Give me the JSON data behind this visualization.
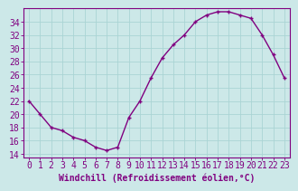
{
  "x": [
    0,
    1,
    2,
    3,
    4,
    5,
    6,
    7,
    8,
    9,
    10,
    11,
    12,
    13,
    14,
    15,
    16,
    17,
    18,
    19,
    20,
    21,
    22,
    23
  ],
  "y": [
    22,
    20,
    18,
    17.5,
    16.5,
    16,
    15,
    14.5,
    15,
    19.5,
    22,
    25.5,
    28.5,
    30.5,
    32,
    34,
    35,
    35.5,
    35.5,
    35,
    34.5,
    32,
    29,
    25.5
  ],
  "line_color": "#800080",
  "marker": "+",
  "bg_color": "#cce8e8",
  "grid_color": "#aad4d4",
  "xlabel": "Windchill (Refroidissement éolien,°C)",
  "ylabel": "",
  "ylim": [
    13.5,
    36
  ],
  "xlim": [
    -0.5,
    23.5
  ],
  "yticks": [
    14,
    16,
    18,
    20,
    22,
    24,
    26,
    28,
    30,
    32,
    34
  ],
  "xticks": [
    0,
    1,
    2,
    3,
    4,
    5,
    6,
    7,
    8,
    9,
    10,
    11,
    12,
    13,
    14,
    15,
    16,
    17,
    18,
    19,
    20,
    21,
    22,
    23
  ],
  "axis_color": "#800080",
  "font_size_xlabel": 7,
  "font_size_tick": 7,
  "line_width": 1.0,
  "marker_size": 3.5,
  "marker_edge_width": 1.0
}
